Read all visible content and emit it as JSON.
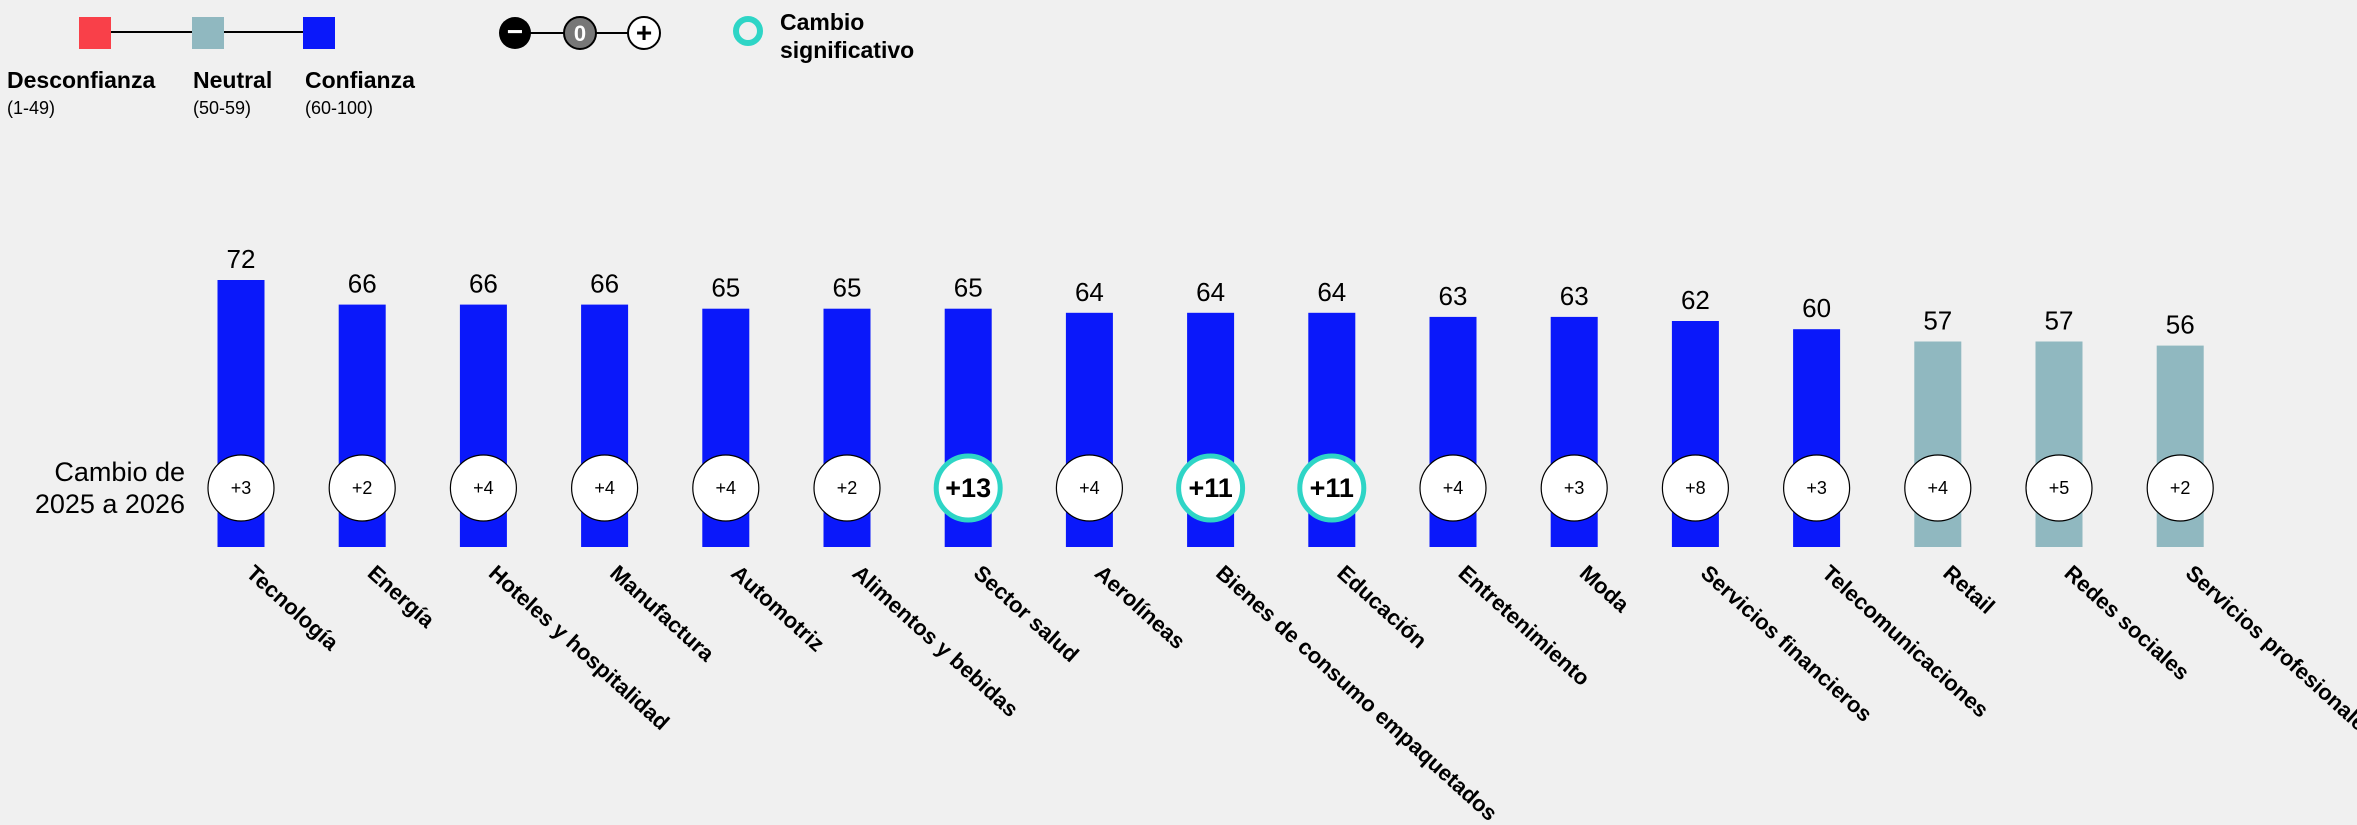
{
  "legend": {
    "distrust": {
      "label": "Desconfianza",
      "range": "(1-49)",
      "color": "#f94049"
    },
    "neutral": {
      "label": "Neutral",
      "range": "(50-59)",
      "color": "#90b8c0"
    },
    "trust": {
      "label": "Confianza",
      "range": "(60-100)",
      "color": "#0a18fa"
    },
    "change_symbols": {
      "minus": "−",
      "zero": "0",
      "plus": "+"
    },
    "significant_change_line1": "Cambio",
    "significant_change_line2": "significativo",
    "significant_color": "#2ed5c6"
  },
  "change_axis_label": "Cambio de\n2025 a 2026",
  "chart_data": {
    "type": "bar",
    "categories": [
      "Tecnología",
      "Energía",
      "Hoteles y hospitalidad",
      "Manufactura",
      "Automotriz",
      "Alimentos y bebidas",
      "Sector salud",
      "Aerolíneas",
      "Bienes de consumo empaquetados",
      "Educación",
      "Entretenimiento",
      "Moda",
      "Servicios financieros",
      "Telecomunicaciones",
      "Retail",
      "Redes sociales",
      "Servicios profesionales"
    ],
    "values": [
      72,
      66,
      66,
      66,
      65,
      65,
      65,
      64,
      64,
      64,
      63,
      63,
      62,
      60,
      57,
      57,
      56
    ],
    "changes": [
      "+3",
      "+2",
      "+4",
      "+4",
      "+4",
      "+2",
      "+13",
      "+4",
      "+11",
      "+11",
      "+4",
      "+3",
      "+8",
      "+3",
      "+4",
      "+5",
      "+2"
    ],
    "significant": [
      false,
      false,
      false,
      false,
      false,
      false,
      true,
      false,
      true,
      true,
      false,
      false,
      false,
      false,
      false,
      false,
      false
    ],
    "trust_levels": [
      "trust",
      "trust",
      "trust",
      "trust",
      "trust",
      "trust",
      "trust",
      "trust",
      "trust",
      "trust",
      "trust",
      "trust",
      "trust",
      "trust",
      "neutral",
      "neutral",
      "neutral"
    ],
    "title": "",
    "xlabel": "",
    "ylabel": ""
  }
}
